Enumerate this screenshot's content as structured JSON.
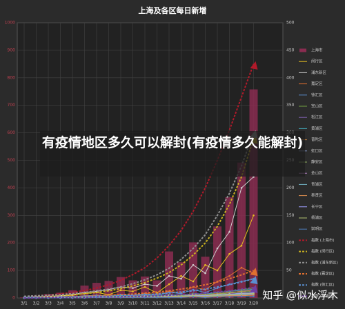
{
  "chart_data": {
    "type": "combo",
    "title": "上海及各区每日新增",
    "overlay_title": "有疫情地区多久可以解封(有疫情多久能解封)",
    "watermark": "知乎 @似水浮木",
    "categories": [
      "3/1",
      "3/2",
      "3/3",
      "3/4",
      "3/5",
      "3/6",
      "3/7",
      "3/8",
      "3/9",
      "3/10",
      "3/11",
      "3/12",
      "3/13",
      "3/14",
      "3/15",
      "3/16",
      "3/17",
      "3/18",
      "3/19",
      "3/20"
    ],
    "ylim": [
      0,
      1000
    ],
    "yticks": [
      0,
      100,
      200,
      300,
      400,
      500,
      600,
      700,
      800,
      900,
      1000
    ],
    "y2lim": [
      0,
      500
    ],
    "y2ticks": [
      0,
      50,
      100,
      150,
      200,
      250,
      300,
      350,
      400,
      450,
      500
    ],
    "grid": true,
    "series": [
      {
        "name": "上海市",
        "kind": "bar",
        "color": "#8a2c50",
        "values": [
          2,
          8,
          14,
          19,
          28,
          45,
          55,
          62,
          76,
          64,
          78,
          64,
          169,
          130,
          202,
          150,
          260,
          366,
          492,
          758
        ]
      },
      {
        "name": "闵行区",
        "kind": "line",
        "axis": "y2",
        "color": "#e8c020",
        "values": [
          0,
          1,
          2,
          3,
          5,
          8,
          10,
          6,
          14,
          12,
          20,
          9,
          25,
          40,
          30,
          60,
          50,
          80,
          95,
          150
        ]
      },
      {
        "name": "浦东新区",
        "kind": "line",
        "axis": "y2",
        "color": "#d0d0d0",
        "values": [
          1,
          2,
          3,
          4,
          6,
          10,
          12,
          15,
          20,
          18,
          25,
          22,
          40,
          35,
          60,
          45,
          90,
          120,
          200,
          220
        ]
      },
      {
        "name": "嘉定区",
        "kind": "line",
        "axis": "y2",
        "color": "#e07030",
        "values": [
          0,
          0,
          1,
          1,
          2,
          3,
          4,
          5,
          6,
          5,
          8,
          7,
          12,
          10,
          20,
          15,
          30,
          40,
          55,
          45
        ]
      },
      {
        "name": "徐汇区",
        "kind": "line",
        "axis": "y2",
        "color": "#5a8fd0",
        "values": [
          0,
          0,
          1,
          2,
          2,
          4,
          5,
          3,
          6,
          4,
          7,
          5,
          10,
          8,
          15,
          10,
          18,
          25,
          30,
          35
        ]
      },
      {
        "name": "宝山区",
        "kind": "line",
        "axis": "y2",
        "color": "#70a040",
        "values": [
          0,
          0,
          0,
          1,
          1,
          2,
          2,
          3,
          3,
          2,
          4,
          3,
          6,
          5,
          8,
          6,
          10,
          12,
          15,
          18
        ]
      },
      {
        "name": "松江区",
        "kind": "line",
        "axis": "y2",
        "color": "#8060b0",
        "values": [
          0,
          0,
          0,
          1,
          1,
          1,
          2,
          2,
          3,
          2,
          3,
          3,
          5,
          4,
          6,
          5,
          8,
          10,
          12,
          15
        ]
      },
      {
        "name": "黄浦区",
        "kind": "line",
        "axis": "y2",
        "color": "#40a0b0",
        "values": [
          0,
          1,
          1,
          1,
          2,
          2,
          3,
          3,
          4,
          3,
          5,
          4,
          6,
          5,
          8,
          7,
          10,
          12,
          14,
          16
        ]
      },
      {
        "name": "普陀区",
        "kind": "line",
        "axis": "y2",
        "color": "#c08040",
        "values": [
          0,
          0,
          1,
          1,
          1,
          2,
          2,
          2,
          3,
          3,
          4,
          3,
          5,
          4,
          7,
          6,
          8,
          10,
          12,
          14
        ]
      },
      {
        "name": "虹口区",
        "kind": "line",
        "axis": "y2",
        "color": "#8090c0",
        "values": [
          0,
          0,
          0,
          0,
          1,
          1,
          1,
          2,
          2,
          2,
          3,
          2,
          4,
          3,
          5,
          4,
          6,
          7,
          9,
          10
        ]
      },
      {
        "name": "静安区",
        "kind": "line",
        "axis": "y2",
        "color": "#90b060",
        "values": [
          0,
          0,
          1,
          1,
          1,
          2,
          2,
          3,
          3,
          2,
          3,
          3,
          5,
          4,
          6,
          5,
          7,
          9,
          11,
          12
        ]
      },
      {
        "name": "金山区",
        "kind": "line",
        "axis": "y2",
        "color": "#b080c0",
        "values": [
          0,
          0,
          0,
          0,
          0,
          1,
          1,
          1,
          1,
          1,
          2,
          1,
          2,
          2,
          3,
          2,
          3,
          4,
          5,
          6
        ]
      },
      {
        "name": "青浦区",
        "kind": "line",
        "axis": "y2",
        "color": "#70b0c0",
        "values": [
          0,
          0,
          0,
          0,
          1,
          1,
          1,
          1,
          2,
          1,
          2,
          2,
          3,
          2,
          4,
          3,
          4,
          5,
          6,
          7
        ]
      },
      {
        "name": "奉贤区",
        "kind": "line",
        "axis": "y2",
        "color": "#e09050",
        "values": [
          0,
          0,
          0,
          0,
          0,
          1,
          1,
          1,
          1,
          1,
          1,
          1,
          2,
          2,
          3,
          2,
          3,
          4,
          4,
          5
        ]
      },
      {
        "name": "长宁区",
        "kind": "line",
        "axis": "y2",
        "color": "#a0a0ff",
        "values": [
          0,
          0,
          0,
          1,
          1,
          1,
          2,
          2,
          2,
          2,
          3,
          2,
          4,
          3,
          5,
          4,
          6,
          7,
          8,
          9
        ]
      },
      {
        "name": "杨浦区",
        "kind": "line",
        "axis": "y2",
        "color": "#b0c070",
        "values": [
          0,
          0,
          0,
          0,
          1,
          1,
          1,
          2,
          2,
          2,
          2,
          2,
          3,
          3,
          4,
          3,
          5,
          6,
          7,
          8
        ]
      },
      {
        "name": "崇明区",
        "kind": "line",
        "axis": "y2",
        "color": "#5080c0",
        "values": [
          0,
          0,
          0,
          0,
          0,
          0,
          1,
          1,
          1,
          1,
          1,
          1,
          1,
          1,
          2,
          1,
          2,
          2,
          3,
          3
        ]
      },
      {
        "name": "指数 (上海市)",
        "kind": "trend",
        "color": "#b01a2a",
        "values": [
          5,
          8,
          11,
          15,
          20,
          27,
          36,
          48,
          64,
          85,
          110,
          145,
          190,
          245,
          315,
          400,
          500,
          610,
          730,
          850
        ]
      },
      {
        "name": "指数 (闵行区)",
        "kind": "trend",
        "axis": "y2",
        "color": "#c8b020",
        "values": [
          2,
          3,
          4,
          5,
          6,
          8,
          10,
          13,
          17,
          22,
          28,
          36,
          46,
          60,
          78,
          100,
          130,
          170,
          220,
          290
        ]
      },
      {
        "name": "指数 (浦东新区)",
        "kind": "trend",
        "axis": "y2",
        "color": "#909090",
        "values": [
          3,
          4,
          5,
          6,
          8,
          10,
          13,
          16,
          20,
          26,
          33,
          42,
          54,
          70,
          90,
          115,
          150,
          190,
          240,
          300
        ]
      },
      {
        "name": "指数 (嘉定区)",
        "kind": "trend",
        "axis": "y2",
        "color": "#e07030",
        "values": [
          1,
          1,
          2,
          2,
          3,
          3,
          4,
          5,
          6,
          7,
          9,
          11,
          13,
          16,
          20,
          24,
          29,
          35,
          42,
          50
        ]
      },
      {
        "name": "指数 (徐汇区)",
        "kind": "trend",
        "axis": "y2",
        "color": "#5a8fd0",
        "values": [
          1,
          1,
          1,
          2,
          2,
          2,
          3,
          3,
          4,
          5,
          6,
          7,
          9,
          11,
          13,
          16,
          20,
          24,
          29,
          35
        ]
      },
      {
        "name": "指数 (杨浦区)",
        "kind": "trend",
        "axis": "y2",
        "color": "#7040a0",
        "values": [
          0,
          0,
          1,
          1,
          1,
          1,
          2,
          2,
          2,
          3,
          3,
          4,
          5,
          6,
          7,
          9,
          11,
          13,
          16,
          19
        ]
      }
    ]
  }
}
